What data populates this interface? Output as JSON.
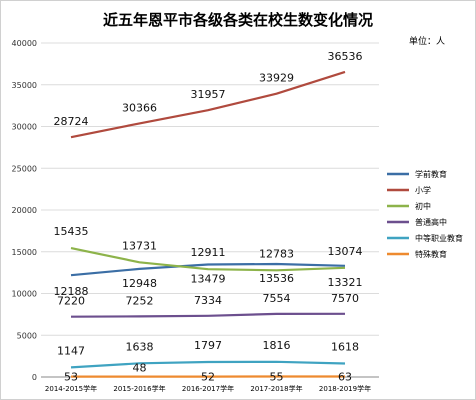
{
  "chart_data": {
    "type": "line",
    "title": "近五年恩平市各级各类在校生数变化情况",
    "unit_label": "单位：人",
    "categories": [
      "2014-2015学年",
      "2015-2016学年",
      "2016-2017学年",
      "2017-2018学年",
      "2018-2019学年"
    ],
    "ylim": [
      0,
      40000
    ],
    "yticks": [
      0,
      5000,
      10000,
      15000,
      20000,
      25000,
      30000,
      35000,
      40000
    ],
    "grid": true,
    "legend_position": "right",
    "series": [
      {
        "name": "学前教育",
        "color": "#3b6ea5",
        "values": [
          12188,
          12948,
          13479,
          13536,
          13321
        ]
      },
      {
        "name": "小学",
        "color": "#b04a3e",
        "values": [
          28724,
          30366,
          31957,
          33929,
          36536
        ]
      },
      {
        "name": "初中",
        "color": "#8db34a",
        "values": [
          15435,
          13731,
          12911,
          12783,
          13074
        ]
      },
      {
        "name": "普通高中",
        "color": "#6c4f8e",
        "values": [
          7220,
          7252,
          7334,
          7554,
          7570
        ]
      },
      {
        "name": "中等职业教育",
        "color": "#3fa3c1",
        "values": [
          1147,
          1638,
          1797,
          1816,
          1618
        ]
      },
      {
        "name": "特殊教育",
        "color": "#ee8a2f",
        "values": [
          53,
          48,
          52,
          55,
          63
        ]
      }
    ]
  }
}
